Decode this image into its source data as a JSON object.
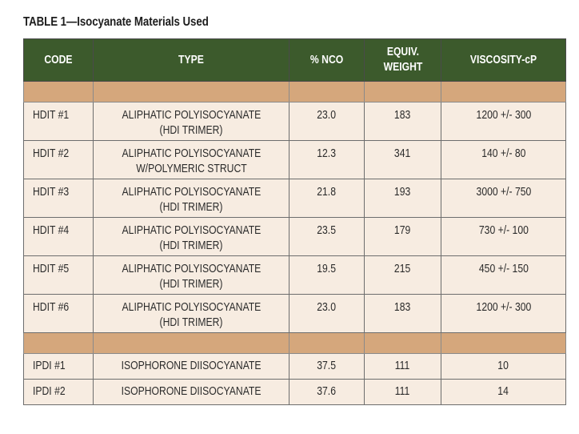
{
  "caption": "TABLE 1—Isocyanate Materials Used",
  "headers": {
    "code": "CODE",
    "type": "TYPE",
    "nco": "% NCO",
    "equiv_line1": "EQUIV.",
    "equiv_line2": "WEIGHT",
    "viscosity": "VISCOSITY-cP"
  },
  "rows": [
    {
      "code": "HDIT #1",
      "type1": "ALIPHATIC POLYISOCYANATE",
      "type2": "(HDI TRIMER)",
      "nco": "23.0",
      "equiv": "183",
      "viscosity": "1200 +/- 300"
    },
    {
      "code": "HDIT #2",
      "type1": "ALIPHATIC POLYISOCYANATE",
      "type2": "W/POLYMERIC STRUCT",
      "nco": "12.3",
      "equiv": "341",
      "viscosity": "140 +/- 80"
    },
    {
      "code": "HDIT #3",
      "type1": "ALIPHATIC POLYISOCYANATE",
      "type2": "(HDI TRIMER)",
      "nco": "21.8",
      "equiv": "193",
      "viscosity": "3000 +/- 750"
    },
    {
      "code": "HDIT #4",
      "type1": "ALIPHATIC POLYISOCYANATE",
      "type2": "(HDI TRIMER)",
      "nco": "23.5",
      "equiv": "179",
      "viscosity": "730 +/- 100"
    },
    {
      "code": "HDIT #5",
      "type1": "ALIPHATIC POLYISOCYANATE",
      "type2": "(HDI TRIMER)",
      "nco": "19.5",
      "equiv": "215",
      "viscosity": "450 +/- 150"
    },
    {
      "code": "HDIT #6",
      "type1": "ALIPHATIC POLYISOCYANATE",
      "type2": "(HDI TRIMER)",
      "nco": "23.0",
      "equiv": "183",
      "viscosity": "1200 +/- 300"
    },
    {
      "code": "IPDI #1",
      "type1": "ISOPHORONE DIISOCYANATE",
      "type2": "",
      "nco": "37.5",
      "equiv": "111",
      "viscosity": "10"
    },
    {
      "code": "IPDI #2",
      "type1": "ISOPHORONE DIISOCYANATE",
      "type2": "",
      "nco": "37.6",
      "equiv": "111",
      "viscosity": "14"
    }
  ],
  "colors": {
    "header_bg": "#3c5a2c",
    "band_bg": "#d5a77c",
    "row_bg": "#f7ece1"
  }
}
